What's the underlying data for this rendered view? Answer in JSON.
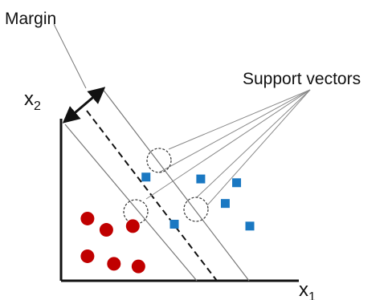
{
  "labels": {
    "margin": "Margin",
    "support_vectors": "Support vectors",
    "x_axis_base": "x",
    "x_axis_sub": "1",
    "y_axis_base": "x",
    "y_axis_sub": "2"
  },
  "classes": {
    "class_a": {
      "shape": "circle",
      "color": "#c00000",
      "points": [
        {
          "x": 0.7,
          "y": 1.65
        },
        {
          "x": 1.2,
          "y": 1.35
        },
        {
          "x": 0.7,
          "y": 0.65
        },
        {
          "x": 1.4,
          "y": 0.45
        },
        {
          "x": 2.05,
          "y": 0.38
        },
        {
          "x": 1.9,
          "y": 1.45,
          "support_vector": true
        }
      ]
    },
    "class_b": {
      "shape": "square",
      "color": "#1a78c2",
      "points": [
        {
          "x": 2.25,
          "y": 2.75,
          "support_vector": true
        },
        {
          "x": 3.7,
          "y": 2.7
        },
        {
          "x": 4.65,
          "y": 2.6
        },
        {
          "x": 4.35,
          "y": 2.05
        },
        {
          "x": 5.0,
          "y": 1.45
        },
        {
          "x": 3.0,
          "y": 1.5,
          "support_vector": true
        }
      ]
    }
  },
  "decision_boundary": {
    "style": "dashed",
    "color": "#111111"
  },
  "margin_lines": {
    "style": "solid",
    "color": "#777777"
  },
  "arrow_color": "#111111"
}
